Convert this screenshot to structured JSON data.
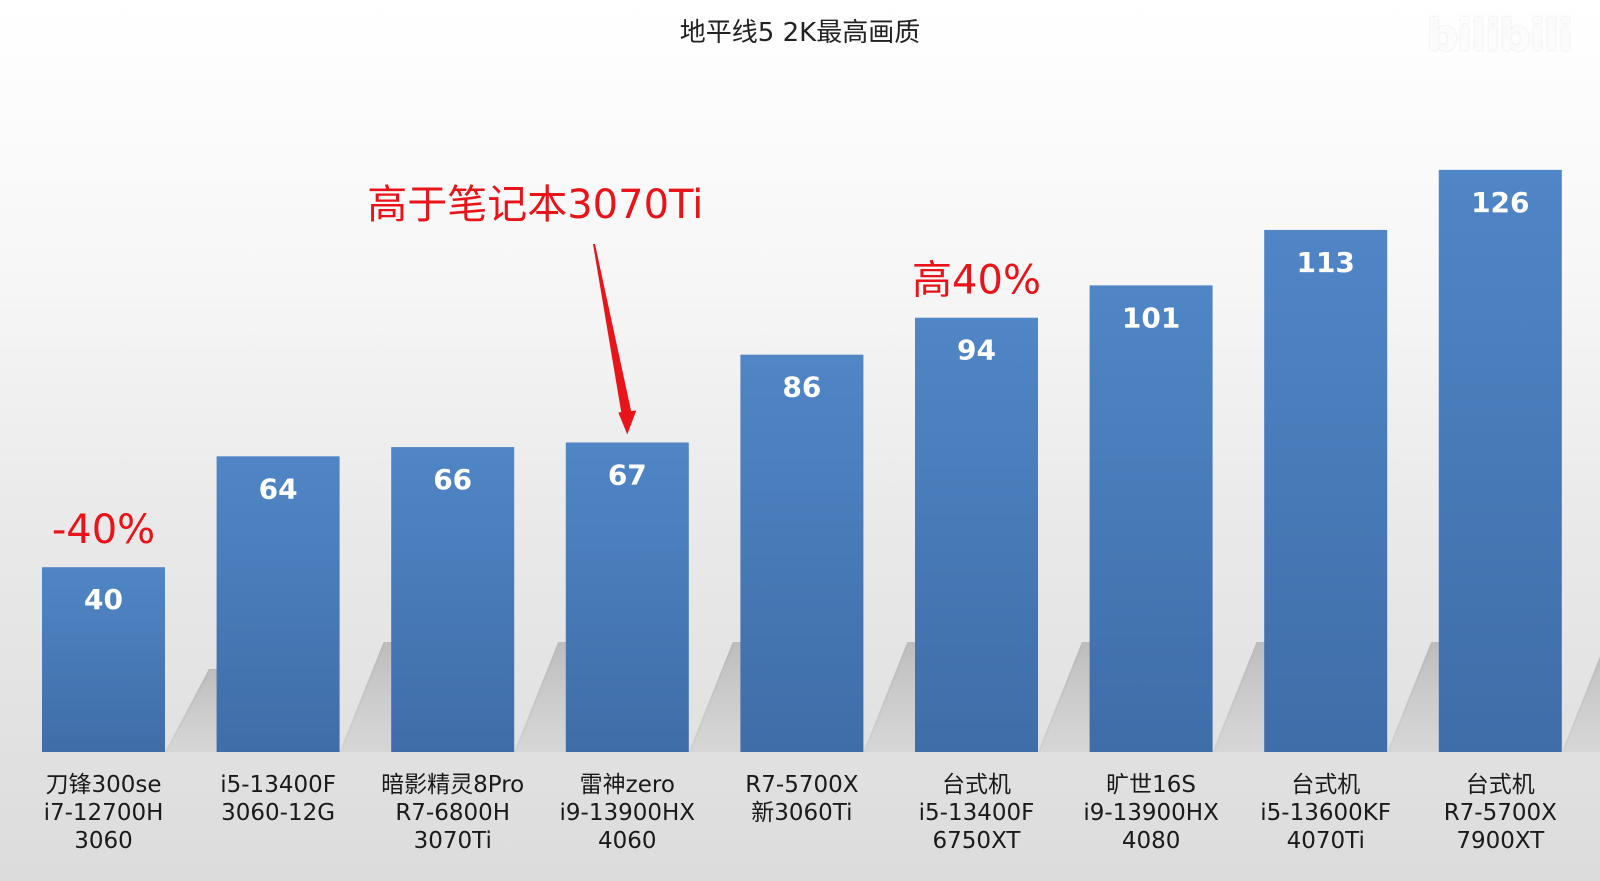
{
  "colors": {
    "bar": "#4a7ebf",
    "bar_dark": "#3e6ba6",
    "annotation": "#e8141a"
  },
  "watermark": "bilibili",
  "chart_data": {
    "type": "bar",
    "title": "地平线5 2K最高画质",
    "xlabel": "",
    "ylabel": "",
    "ylim": [
      0,
      130
    ],
    "grid": false,
    "legend": "none",
    "categories": [
      [
        "刀锋300se",
        "i7-12700H",
        "3060"
      ],
      [
        "i5-13400F",
        "3060-12G"
      ],
      [
        "暗影精灵8Pro",
        "R7-6800H",
        "3070Ti"
      ],
      [
        "雷神zero",
        "i9-13900HX",
        "4060"
      ],
      [
        "R7-5700X",
        "新3060Ti"
      ],
      [
        "台式机",
        "i5-13400F",
        "6750XT"
      ],
      [
        "旷世16S",
        "i9-13900HX",
        "4080"
      ],
      [
        "台式机",
        "i5-13600KF",
        "4070Ti"
      ],
      [
        "台式机",
        "R7-5700X",
        "7900XT"
      ]
    ],
    "values": [
      40,
      64,
      66,
      67,
      86,
      94,
      101,
      113,
      126
    ],
    "annotations": [
      {
        "text": "-40%",
        "category_index": 0
      },
      {
        "text": "高于笔记本3070Ti",
        "category_index": 3,
        "arrow": true
      },
      {
        "text": "高40%",
        "category_index": 5
      }
    ]
  }
}
